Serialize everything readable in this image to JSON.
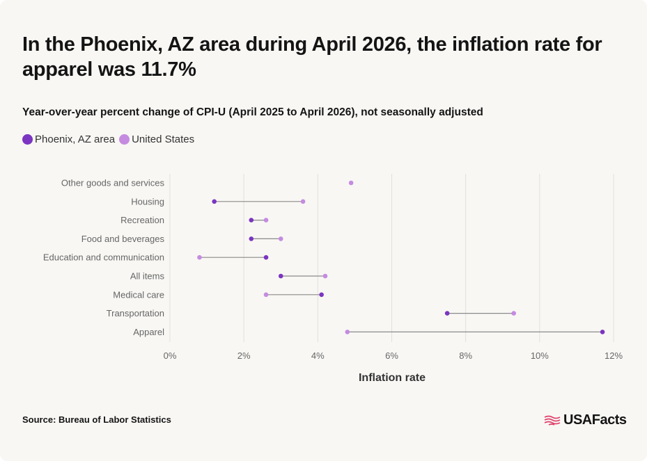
{
  "title": "In the Phoenix, AZ area during April 2026, the inflation rate for apparel was 11.7%",
  "subtitle": "Year-over-year percent change of CPI-U (April 2025 to April 2026), not seasonally adjusted",
  "source": "Source: Bureau of Labor Statistics",
  "logo_text": "USAFacts",
  "colors": {
    "phoenix": "#7b35c0",
    "us": "#c58be0",
    "connector": "#8a8a8a",
    "grid": "#e2e0dc",
    "background": "#f8f7f4"
  },
  "legend": [
    {
      "label": "Phoenix, AZ area",
      "color": "#7b35c0"
    },
    {
      "label": "United States",
      "color": "#c58be0"
    }
  ],
  "chart_data": {
    "type": "dumbbell",
    "xlabel": "Inflation rate",
    "xlim": [
      0,
      12
    ],
    "xticks": [
      0,
      2,
      4,
      6,
      8,
      10,
      12
    ],
    "xtick_labels": [
      "0%",
      "2%",
      "4%",
      "6%",
      "8%",
      "10%",
      "12%"
    ],
    "categories": [
      "Other goods and services",
      "Housing",
      "Recreation",
      "Food and beverages",
      "Education and communication",
      "All items",
      "Medical care",
      "Transportation",
      "Apparel"
    ],
    "series": [
      {
        "name": "Phoenix, AZ area",
        "values": [
          null,
          1.2,
          2.2,
          2.2,
          2.6,
          3.0,
          4.1,
          7.5,
          11.7
        ]
      },
      {
        "name": "United States",
        "values": [
          4.9,
          3.6,
          2.6,
          3.0,
          0.8,
          4.2,
          2.6,
          9.3,
          4.8
        ]
      }
    ],
    "grid": true
  }
}
